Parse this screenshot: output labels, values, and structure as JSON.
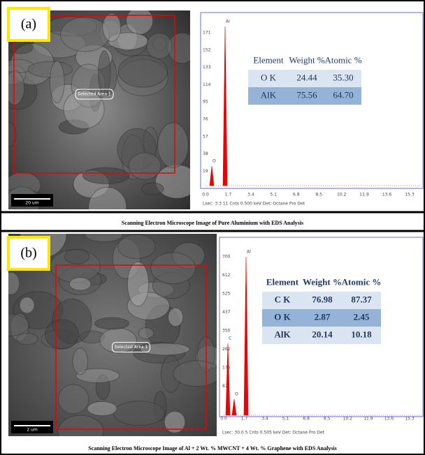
{
  "panels": [
    {
      "label": "(a)",
      "sem": {
        "area_label": "Selected Area 1",
        "scale_bar": "20 um"
      },
      "spectrum": {
        "yticks": [
          "171",
          "152",
          "133",
          "114",
          "95",
          "76",
          "57",
          "38",
          "19"
        ],
        "xticks": [
          "0.0",
          "1.7",
          "3.4",
          "5.1",
          "6.8",
          "8.5",
          "10.2",
          "11.9",
          "13.6",
          "15.3"
        ],
        "peaks": [
          "Al",
          "O"
        ],
        "footer": "Lsec: 3.3   11 Cnts   0.500 keV   Det: Octane Pro Det"
      },
      "table": {
        "header": [
          "Element",
          "Weight %",
          "Atomic %"
        ],
        "rows": [
          [
            "O K",
            "24.44",
            "35.30"
          ],
          [
            "AlK",
            "75.56",
            "64.70"
          ]
        ]
      },
      "caption": "Scanning Electron Microscope Image of Pure Aluminium with EDS Analysis"
    },
    {
      "label": "(b)",
      "sem": {
        "area_label": "Selected Area 1",
        "scale_bar": "2 um"
      },
      "spectrum": {
        "yticks": [
          "700",
          "612",
          "525",
          "437",
          "350",
          "262",
          "175",
          "87"
        ],
        "xticks": [
          "0.0",
          "1.7",
          "3.4",
          "5.1",
          "6.8",
          "8.5",
          "10.2",
          "11.9",
          "13.6",
          "15.3"
        ],
        "peaks": [
          "Al",
          "C",
          "O"
        ],
        "footer": "Lsec: 30.0   5 Cnts   0.505 keV   Det: Octane Pro Det"
      },
      "table": {
        "header": [
          "Element",
          "Weight %",
          "Atomic %"
        ],
        "rows": [
          [
            "C K",
            "76.98",
            "87.37"
          ],
          [
            "O K",
            "2.87",
            "2.45"
          ],
          [
            "AlK",
            "20.14",
            "10.18"
          ]
        ]
      },
      "caption": "Scanning Electron Microscope Image of Al + 2 Wt. % MWCNT + 4 Wt. % Graphene with EDS Analysis"
    }
  ]
}
